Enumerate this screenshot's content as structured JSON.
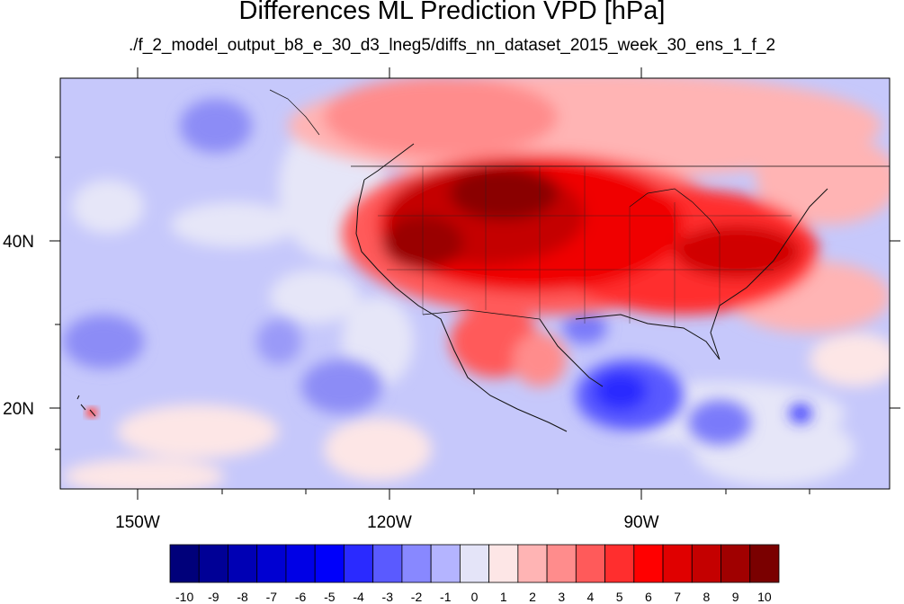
{
  "figure": {
    "title": "Differences ML Prediction VPD [hPa]",
    "subtitle": "./f_2_model_output_b8_e_30_d3_lneg5/diffs_nn_dataset_2015_week_30_ens_1_f_2"
  },
  "axes": {
    "lon_ticks": [
      {
        "value": -150,
        "label": "150W"
      },
      {
        "value": -120,
        "label": "120W"
      },
      {
        "value": -90,
        "label": "90W"
      }
    ],
    "lat_ticks": [
      {
        "value": 40,
        "label": "40N"
      },
      {
        "value": 20,
        "label": "20N"
      }
    ]
  },
  "colorbar": {
    "labels": [
      "-10",
      "-9",
      "-8",
      "-7",
      "-6",
      "-5",
      "-4",
      "-3",
      "-2",
      "-1",
      "0",
      "1",
      "2",
      "3",
      "4",
      "5",
      "6",
      "7",
      "8",
      "9",
      "10"
    ],
    "colors": [
      "#00007a",
      "#000096",
      "#0000b4",
      "#0000d2",
      "#0000e6",
      "#0000fa",
      "#2a2aff",
      "#5a5aff",
      "#8888ff",
      "#b4b4ff",
      "#e4e4f8",
      "#fde6e6",
      "#ffb4b4",
      "#ff8c8c",
      "#ff5a5a",
      "#ff2e2e",
      "#ff0000",
      "#e00000",
      "#c40000",
      "#a00000",
      "#7a0000"
    ]
  }
}
